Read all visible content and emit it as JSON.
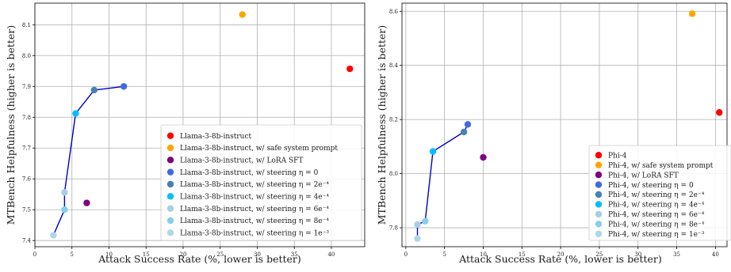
{
  "chart_data": [
    {
      "type": "scatter",
      "xlabel": "Attack Success Rate (%, lower is better)",
      "ylabel": "MTBench Helpfulness (higher is better)",
      "xlim": [
        0,
        44.5
      ],
      "ylim": [
        7.38,
        8.17
      ],
      "xticks": [
        "0",
        "5",
        "10",
        "15",
        "20",
        "25",
        "30",
        "35",
        "40"
      ],
      "yticks": [
        "7.4",
        "7.5",
        "7.6",
        "7.7",
        "7.8",
        "7.9",
        "8.0",
        "8.1"
      ],
      "xtick_values": [
        0,
        5,
        10,
        15,
        20,
        25,
        30,
        35,
        40
      ],
      "ytick_values": [
        7.4,
        7.5,
        7.6,
        7.7,
        7.8,
        7.9,
        8.0,
        8.1
      ],
      "grid": true,
      "legend_position": "lower-right",
      "line_color": "#0000cd",
      "series": [
        {
          "name": "Llama-3-8b-instruct",
          "color": "#ff0000",
          "points": [
            [
              42.5,
              7.957
            ]
          ]
        },
        {
          "name": "Llama-3-8b-instruct, w/ safe system prompt",
          "color": "#ffa500",
          "points": [
            [
              28.0,
              8.133
            ]
          ]
        },
        {
          "name": "Llama-3-8b-instruct, w/ LoRA SFT",
          "color": "#800080",
          "points": [
            [
              7.0,
              7.522
            ]
          ]
        },
        {
          "name": "Llama-3-8b-instruct, w/ steering η = 0",
          "color": "#4169e1",
          "points": [
            [
              12.0,
              7.9
            ]
          ]
        },
        {
          "name": "Llama-3-8b-instruct, w/ steering η = 2e⁻⁴",
          "color": "#4682b4",
          "points": [
            [
              8.0,
              7.888
            ]
          ]
        },
        {
          "name": "Llama-3-8b-instruct, w/ steering η = 4e⁻⁴",
          "color": "#00bfff",
          "points": [
            [
              5.5,
              7.812
            ]
          ]
        },
        {
          "name": "Llama-3-8b-instruct, w/ steering η = 6e⁻⁴",
          "color": "#a8cfe6",
          "points": [
            [
              4.0,
              7.556
            ]
          ]
        },
        {
          "name": "Llama-3-8b-instruct, w/ steering η = 8e⁻⁴",
          "color": "#87ceeb",
          "points": [
            [
              4.0,
              7.5
            ]
          ]
        },
        {
          "name": "Llama-3-8b-instruct, w/ steering η = 1e⁻³",
          "color": "#add8e6",
          "points": [
            [
              2.5,
              7.417
            ]
          ]
        }
      ],
      "steering_line": [
        [
          12.0,
          7.9
        ],
        [
          8.0,
          7.888
        ],
        [
          5.5,
          7.812
        ],
        [
          4.0,
          7.556
        ],
        [
          4.0,
          7.5
        ],
        [
          2.5,
          7.417
        ]
      ]
    },
    {
      "type": "scatter",
      "xlabel": "Attack Success Rate (%, lower is better)",
      "ylabel": "MTBench Helpfulness (higher is better)",
      "xlim": [
        -0.5,
        41.5
      ],
      "ylim": [
        7.73,
        8.63
      ],
      "xticks": [
        "0",
        "5",
        "10",
        "15",
        "20",
        "25",
        "30",
        "35",
        "40"
      ],
      "yticks": [
        "7.8",
        "8.0",
        "8.2",
        "8.4",
        "8.6"
      ],
      "xtick_values": [
        0,
        5,
        10,
        15,
        20,
        25,
        30,
        35,
        40
      ],
      "ytick_values": [
        7.8,
        8.0,
        8.2,
        8.4,
        8.6
      ],
      "grid": true,
      "legend_position": "lower-right",
      "line_color": "#0000cd",
      "series": [
        {
          "name": "Phi-4",
          "color": "#ff0000",
          "points": [
            [
              40.5,
              8.226
            ]
          ]
        },
        {
          "name": "Phi-4, w/ safe system prompt",
          "color": "#ffa500",
          "points": [
            [
              37.0,
              8.591
            ]
          ]
        },
        {
          "name": "Phi-4, w/ LoRA SFT",
          "color": "#800080",
          "points": [
            [
              10.0,
              8.06
            ]
          ]
        },
        {
          "name": "Phi-4, w/ steering η = 0",
          "color": "#4169e1",
          "points": [
            [
              8.0,
              8.182
            ]
          ]
        },
        {
          "name": "Phi-4, w/ steering η = 2e⁻⁴",
          "color": "#4682b4",
          "points": [
            [
              7.5,
              8.154
            ]
          ]
        },
        {
          "name": "Phi-4, w/ steering η = 4e⁻⁴",
          "color": "#00bfff",
          "points": [
            [
              3.5,
              8.082
            ]
          ]
        },
        {
          "name": "Phi-4, w/ steering η = 6e⁻⁴",
          "color": "#a8cfe6",
          "points": [
            [
              1.5,
              7.812
            ]
          ]
        },
        {
          "name": "Phi-4, w/ steering η = 8e⁻⁴",
          "color": "#87ceeb",
          "points": [
            [
              2.5,
              7.824
            ]
          ]
        },
        {
          "name": "Phi-4, w/ steering η = 1e⁻³",
          "color": "#add8e6",
          "points": [
            [
              1.5,
              7.76
            ]
          ]
        }
      ],
      "steering_line": [
        [
          8.0,
          8.182
        ],
        [
          7.5,
          8.154
        ],
        [
          3.5,
          8.082
        ],
        [
          2.5,
          7.824
        ],
        [
          1.5,
          7.812
        ],
        [
          1.5,
          7.76
        ]
      ]
    }
  ]
}
